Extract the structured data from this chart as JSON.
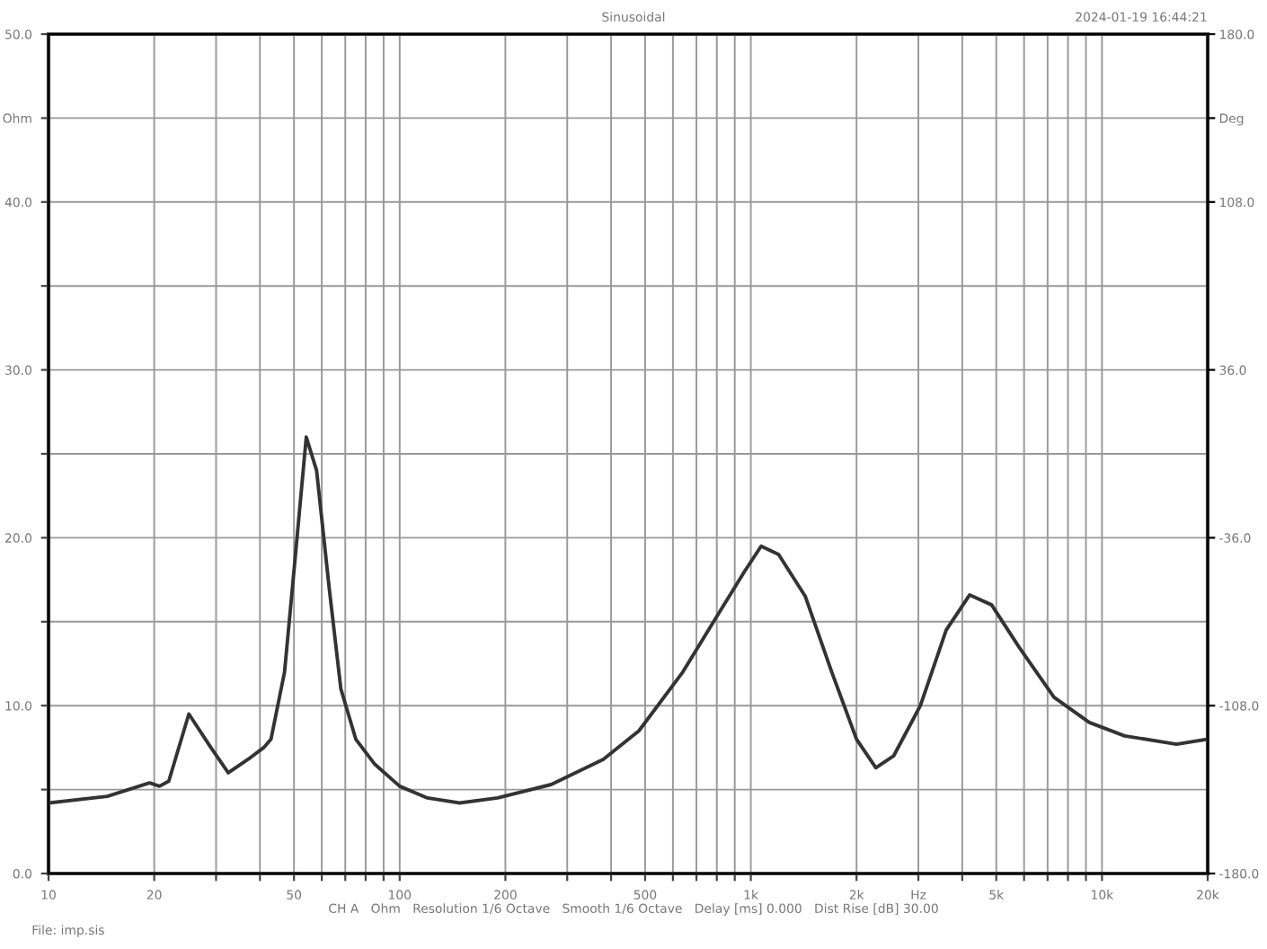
{
  "chart_data": {
    "type": "line",
    "title": "Sinusoidal",
    "annotations": [
      "2024-01-19 16:44:21",
      "CH A   Ohm   Resolution 1/6 Octave   Smooth 1/6 Octave   Delay [ms] 0.000   Dist Rise [dB] 30.00",
      "File: imp.sis"
    ],
    "x": [
      10,
      14.7,
      19.4,
      20.7,
      22,
      25.1,
      29,
      32.5,
      37,
      41,
      43,
      47,
      50.5,
      54.2,
      58,
      63,
      68,
      75,
      85,
      100,
      120,
      148,
      190,
      270,
      380,
      480,
      640,
      810,
      960,
      1070,
      1200,
      1430,
      1700,
      2000,
      2270,
      2550,
      3040,
      3600,
      4200,
      4850,
      5800,
      7300,
      9200,
      11600,
      16300,
      20000
    ],
    "series": [
      {
        "color": "#333333",
        "values": [
          4.2,
          4.6,
          5.4,
          5.2,
          5.5,
          9.5,
          7.5,
          6.0,
          6.8,
          7.5,
          8.0,
          12,
          19,
          26,
          24,
          17,
          11,
          8,
          6.5,
          5.2,
          4.5,
          4.2,
          4.5,
          5.3,
          6.8,
          8.5,
          12,
          15.5,
          18,
          19.5,
          19,
          16.5,
          12,
          8,
          6.3,
          7,
          10,
          14.5,
          16.6,
          16,
          13.5,
          10.5,
          9,
          8.2,
          7.7,
          8.0
        ]
      }
    ],
    "log": "x",
    "xlim": [
      10,
      20000
    ],
    "xticks": [
      10,
      20,
      {
        "value": 30,
        "label": null
      },
      {
        "value": 40,
        "label": null
      },
      50,
      {
        "value": 60,
        "label": null
      },
      {
        "value": 70,
        "label": null
      },
      {
        "value": 80,
        "label": null
      },
      {
        "value": 90,
        "label": null
      },
      100,
      200,
      {
        "value": 300,
        "label": null
      },
      {
        "value": 400,
        "label": null
      },
      500,
      {
        "value": 600,
        "label": null
      },
      {
        "value": 700,
        "label": null
      },
      {
        "value": 800,
        "label": null
      },
      {
        "value": 900,
        "label": null
      },
      {
        "value": 1000,
        "label": "1k"
      },
      {
        "value": 2000,
        "label": "2k"
      },
      {
        "value": 3000,
        "label": "Hz"
      },
      {
        "value": 4000,
        "label": null
      },
      {
        "value": 5000,
        "label": "5k"
      },
      {
        "value": 6000,
        "label": null
      },
      {
        "value": 7000,
        "label": null
      },
      {
        "value": 8000,
        "label": null
      },
      {
        "value": 9000,
        "label": null
      },
      {
        "value": 10000,
        "label": "10k"
      },
      {
        "value": 20000,
        "label": "20k"
      }
    ],
    "ylim": [
      0,
      50
    ],
    "yticks": [
      {
        "value": 0,
        "label": "0.0"
      },
      {
        "value": 5,
        "label": null
      },
      {
        "value": 10,
        "label": "10.0"
      },
      {
        "value": 15,
        "label": null
      },
      {
        "value": 20,
        "label": "20.0"
      },
      {
        "value": 25,
        "label": null
      },
      {
        "value": 30,
        "label": "30.0"
      },
      {
        "value": 35,
        "label": null
      },
      {
        "value": 40,
        "label": "40.0"
      },
      {
        "value": 45,
        "label": "Ohm"
      },
      {
        "value": 50,
        "label": "50.0"
      }
    ],
    "y2lim": [
      -180,
      180
    ],
    "y2ticks": [
      {
        "value": -180,
        "label": "-180.0"
      },
      {
        "value": -108,
        "label": "-108.0"
      },
      {
        "value": -36,
        "label": "-36.0"
      },
      {
        "value": 36,
        "label": "36.0"
      },
      {
        "value": 108,
        "label": "108.0"
      },
      {
        "value": 144,
        "label": "Deg"
      },
      {
        "value": 180,
        "label": "180.0"
      }
    ],
    "grid": true,
    "line_style": "solid",
    "marker": "none"
  }
}
